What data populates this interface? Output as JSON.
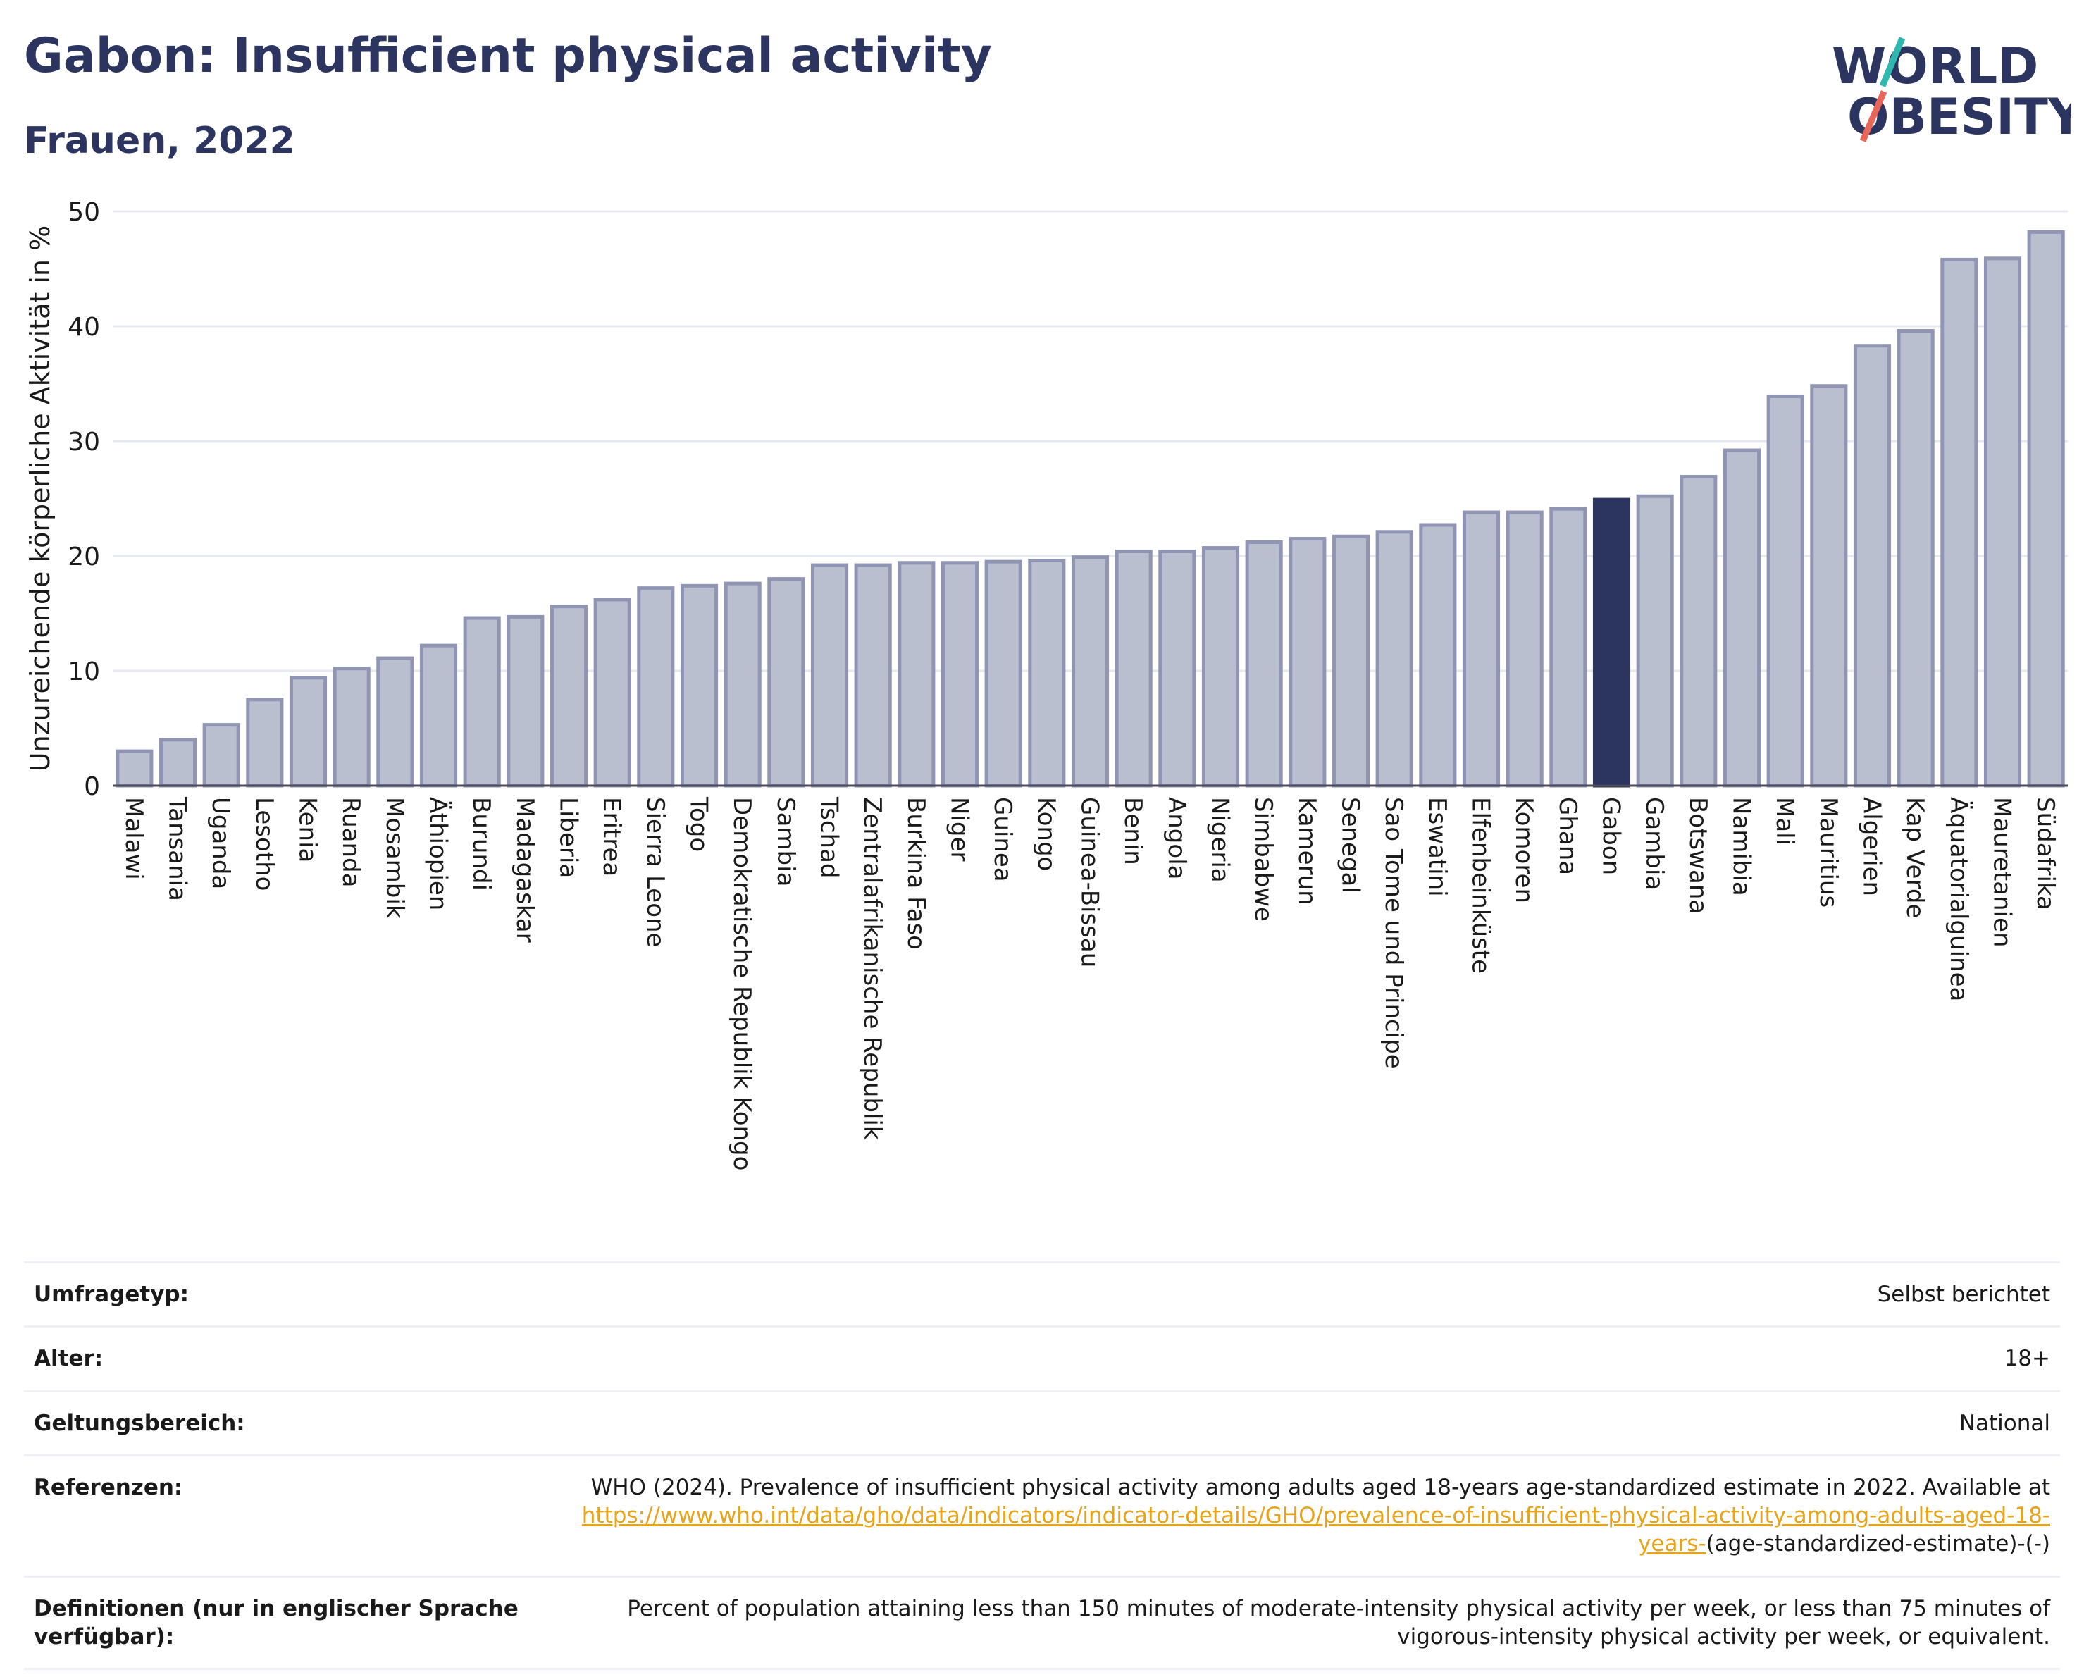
{
  "header": {
    "title": "Gabon: Insufficient physical activity",
    "subtitle": "Frauen, 2022"
  },
  "logo": {
    "line1": "WORLD",
    "line2": "OBESITY",
    "accent_teal": "#2fb8b0",
    "accent_coral": "#e8665a"
  },
  "colors": {
    "bar": "#babfcf",
    "bar_stroke": "#8f95b2",
    "highlight": "#2c3560",
    "grid": "#e6e8ef"
  },
  "chart_data": {
    "type": "bar",
    "ylabel": "Unzureichende körperliche Aktivität in %",
    "ylim": [
      0,
      50
    ],
    "yticks": [
      0,
      10,
      20,
      30,
      40,
      50
    ],
    "grid": true,
    "highlight": "Gabon",
    "categories": [
      "Malawi",
      "Tansania",
      "Uganda",
      "Lesotho",
      "Kenia",
      "Ruanda",
      "Mosambik",
      "Äthiopien",
      "Burundi",
      "Madagaskar",
      "Liberia",
      "Eritrea",
      "Sierra Leone",
      "Togo",
      "Demokratische Republik Kongo",
      "Sambia",
      "Tschad",
      "Zentralafrikanische Republik",
      "Burkina Faso",
      "Niger",
      "Guinea",
      "Kongo",
      "Guinea-Bissau",
      "Benin",
      "Angola",
      "Nigeria",
      "Simbabwe",
      "Kamerun",
      "Senegal",
      "Sao Tome und Principe",
      "Eswatini",
      "Elfenbeinküste",
      "Komoren",
      "Ghana",
      "Gabon",
      "Gambia",
      "Botswana",
      "Namibia",
      "Mali",
      "Mauritius",
      "Algerien",
      "Kap Verde",
      "Äquatorialguinea",
      "Mauretanien",
      "Südafrika"
    ],
    "values": [
      3.0,
      4.0,
      5.3,
      7.5,
      9.4,
      10.2,
      11.1,
      12.2,
      14.6,
      14.7,
      15.6,
      16.2,
      17.2,
      17.4,
      17.6,
      18.0,
      19.2,
      19.2,
      19.4,
      19.4,
      19.5,
      19.6,
      19.9,
      20.4,
      20.4,
      20.7,
      21.2,
      21.5,
      21.7,
      22.1,
      22.7,
      23.8,
      23.8,
      24.1,
      24.9,
      25.2,
      26.9,
      29.2,
      33.9,
      34.8,
      38.3,
      39.6,
      45.8,
      45.9,
      48.2
    ]
  },
  "info": {
    "rows": [
      {
        "label": "Umfragetyp:",
        "value": "Selbst berichtet"
      },
      {
        "label": "Alter:",
        "value": "18+"
      },
      {
        "label": "Geltungsbereich:",
        "value": "National"
      }
    ],
    "references_label": "Referenzen:",
    "references_text": "WHO (2024). Prevalence of insufficient physical activity among adults aged 18-years age-standardized estimate in 2022. Available at",
    "references_link": "https://www.who.int/data/gho/data/indicators/indicator-details/GHO/prevalence-of-insufficient-physical-activity-among-adults-aged-18-years-",
    "references_suffix": "(age-standardized-estimate)-(-)",
    "definitions_label": "Definitionen (nur in englischer Sprache verfügbar):",
    "definitions_text": "Percent of population attaining less than 150 minutes of moderate-intensity physical activity per week, or less than 75 minutes of vigorous-intensity physical activity per week, or equivalent."
  }
}
